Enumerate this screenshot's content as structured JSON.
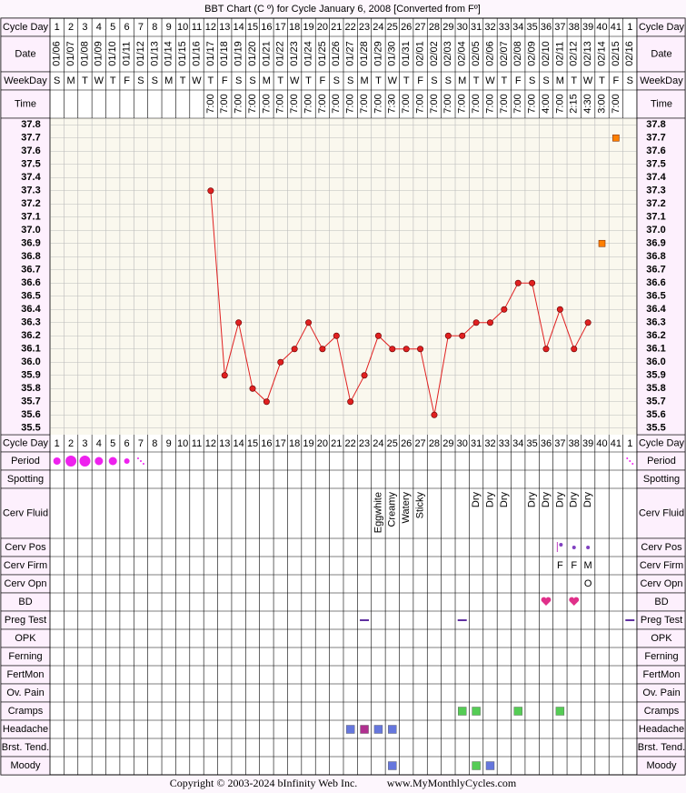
{
  "title": "BBT Chart (C º) for Cycle January 6, 2008  [Converted from Fº]",
  "top_rows": {
    "cycle_day": "Cycle Day",
    "date": "Date",
    "weekday": "WeekDay",
    "time": "Time"
  },
  "lower_rows": [
    "Cycle Day",
    "Period",
    "Spotting",
    "Cerv Fluid",
    "Cerv Pos",
    "Cerv Firm",
    "Cerv Opn",
    "BD",
    "Preg Test",
    "OPK",
    "Ferning",
    "FertMon",
    "Ov. Pain",
    "Cramps",
    "Headache",
    "Brst. Tend.",
    "Moody"
  ],
  "dates": [
    "01/06",
    "01/07",
    "01/08",
    "01/09",
    "01/10",
    "01/11",
    "01/12",
    "01/13",
    "01/14",
    "01/15",
    "01/16",
    "01/17",
    "01/18",
    "01/19",
    "01/20",
    "01/21",
    "01/22",
    "01/23",
    "01/24",
    "01/25",
    "01/26",
    "01/27",
    "01/28",
    "01/29",
    "01/30",
    "01/31",
    "02/01",
    "02/02",
    "02/03",
    "02/04",
    "02/05",
    "02/06",
    "02/07",
    "02/08",
    "02/09",
    "02/10",
    "02/11",
    "02/12",
    "02/13",
    "02/14",
    "02/15",
    "02/16"
  ],
  "weekdays": [
    "S",
    "M",
    "T",
    "W",
    "T",
    "F",
    "S",
    "S",
    "M",
    "T",
    "W",
    "T",
    "F",
    "S",
    "S",
    "M",
    "T",
    "W",
    "T",
    "F",
    "S",
    "S",
    "M",
    "T",
    "W",
    "T",
    "F",
    "S",
    "S",
    "M",
    "T",
    "W",
    "T",
    "F",
    "S",
    "S",
    "M",
    "T",
    "W",
    "T",
    "F",
    "S"
  ],
  "times": [
    null,
    null,
    null,
    null,
    null,
    null,
    null,
    null,
    null,
    null,
    null,
    "7:00",
    "7:00",
    "7:00",
    "7:00",
    "7:00",
    "7:00",
    "7:00",
    "7:00",
    "7:00",
    "7:00",
    "7:00",
    "7:00",
    "7:00",
    "7:30",
    "7:00",
    "7:00",
    "7:00",
    "7:00",
    "7:00",
    "7:00",
    "7:00",
    "7:00",
    "7:00",
    "7:00",
    "4:00",
    "7:00",
    "2:15",
    "4:30",
    "3:00",
    "7:00",
    null
  ],
  "cerv_fluid": [
    null,
    null,
    null,
    null,
    null,
    null,
    null,
    null,
    null,
    null,
    null,
    null,
    null,
    null,
    null,
    null,
    null,
    null,
    null,
    null,
    null,
    null,
    null,
    "Eggwhite",
    "Creamy",
    "Watery",
    "Sticky",
    null,
    null,
    null,
    "Dry",
    "Dry",
    "Dry",
    null,
    "Dry",
    "Dry",
    "Dry",
    "Dry",
    "Dry",
    null,
    null,
    null
  ],
  "cerv_firm": [
    null,
    null,
    null,
    null,
    null,
    null,
    null,
    null,
    null,
    null,
    null,
    null,
    null,
    null,
    null,
    null,
    null,
    null,
    null,
    null,
    null,
    null,
    null,
    null,
    null,
    null,
    null,
    null,
    null,
    null,
    null,
    null,
    null,
    null,
    null,
    null,
    "F",
    "F",
    "M",
    null,
    null,
    null
  ],
  "cerv_opn": [
    null,
    null,
    null,
    null,
    null,
    null,
    null,
    null,
    null,
    null,
    null,
    null,
    null,
    null,
    null,
    null,
    null,
    null,
    null,
    null,
    null,
    null,
    null,
    null,
    null,
    null,
    null,
    null,
    null,
    null,
    null,
    null,
    null,
    null,
    null,
    null,
    null,
    null,
    "O",
    null,
    null,
    null
  ],
  "chart_data": {
    "type": "line",
    "categories": [
      1,
      2,
      3,
      4,
      5,
      6,
      7,
      8,
      9,
      10,
      11,
      12,
      13,
      14,
      15,
      16,
      17,
      18,
      19,
      20,
      21,
      22,
      23,
      24,
      25,
      26,
      27,
      28,
      29,
      30,
      31,
      32,
      33,
      34,
      35,
      36,
      37,
      38,
      39,
      40,
      41,
      1
    ],
    "series": [
      {
        "color": "#e02020",
        "values": [
          null,
          null,
          null,
          null,
          null,
          null,
          null,
          null,
          null,
          null,
          null,
          37.3,
          35.9,
          36.3,
          35.8,
          35.7,
          36.0,
          36.1,
          36.3,
          36.1,
          36.2,
          35.7,
          35.9,
          36.2,
          36.1,
          36.1,
          36.1,
          35.6,
          36.2,
          36.2,
          36.3,
          36.3,
          36.4,
          36.6,
          36.6,
          36.1,
          36.4,
          36.1,
          36.3,
          null,
          null,
          null
        ]
      },
      {
        "color": "#ff8000",
        "connected": false,
        "values": [
          null,
          null,
          null,
          null,
          null,
          null,
          null,
          null,
          null,
          null,
          null,
          null,
          null,
          null,
          null,
          null,
          null,
          null,
          null,
          null,
          null,
          null,
          null,
          null,
          null,
          null,
          null,
          null,
          null,
          null,
          null,
          null,
          null,
          null,
          null,
          null,
          null,
          null,
          null,
          36.9,
          37.7,
          null
        ]
      }
    ],
    "ylim": [
      35.45,
      37.85
    ],
    "yticks": [
      37.8,
      37.7,
      37.6,
      37.5,
      37.4,
      37.3,
      37.2,
      37.1,
      {
        "value": 37,
        "label": "37.0"
      },
      36.9,
      36.8,
      36.7,
      36.6,
      36.5,
      36.4,
      36.3,
      36.2,
      36.1,
      {
        "value": 36,
        "label": "36.0"
      },
      35.9,
      35.8,
      35.7,
      35.6,
      35.5
    ],
    "grid": true
  },
  "footer": {
    "copyright": "Copyright © 2003-2024 bInfinity Web Inc.",
    "site": "www.MyMonthlyCycles.com"
  }
}
